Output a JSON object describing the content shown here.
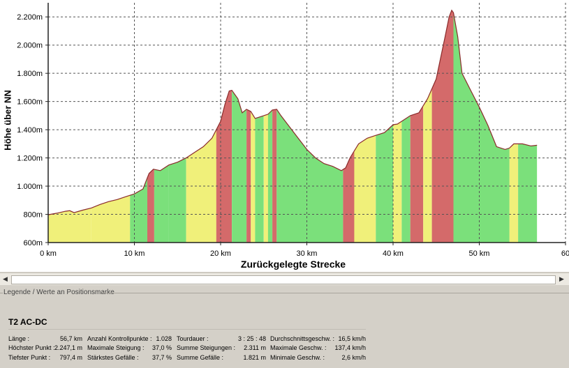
{
  "chart_data": {
    "type": "area",
    "xlabel": "Zurückgelegte Strecke",
    "ylabel": "Höhe über NN",
    "xlim": [
      0,
      60
    ],
    "ylim": [
      600,
      2300
    ],
    "x_ticks": [
      0,
      10,
      20,
      30,
      40,
      50,
      60
    ],
    "x_tick_labels": [
      "0 km",
      "10 km",
      "20 km",
      "30 km",
      "40 km",
      "50 km",
      "60"
    ],
    "y_ticks": [
      600,
      800,
      1000,
      1200,
      1400,
      1600,
      1800,
      2000,
      2200
    ],
    "y_tick_labels": [
      "600m",
      "800m",
      "1.000m",
      "1.200m",
      "1.400m",
      "1.600m",
      "1.800m",
      "2.000m",
      "2.200m"
    ],
    "grid": true,
    "gradient_colors": {
      "flat": "#7be07b",
      "moderate": "#f0f07a",
      "steep": "#d46a6a"
    },
    "profile": {
      "x": [
        0,
        1,
        2,
        2.5,
        3,
        4,
        5,
        6,
        7,
        8,
        9,
        10,
        11,
        11.7,
        12.2,
        13,
        14,
        15,
        16,
        17,
        18,
        19,
        20,
        20.5,
        21,
        21.3,
        22,
        22.5,
        23,
        23.5,
        24,
        25,
        25.5,
        26,
        26.5,
        27,
        28,
        29,
        30,
        31,
        32,
        33,
        34,
        34.5,
        35,
        36,
        37,
        38,
        39,
        40,
        40.5,
        41,
        42,
        43,
        44,
        45,
        46,
        46.5,
        46.8,
        47,
        47.5,
        48,
        49,
        50,
        51,
        52,
        53,
        53.5,
        54,
        55,
        56,
        56.7
      ],
      "y": [
        797,
        808,
        822,
        826,
        812,
        830,
        845,
        870,
        890,
        905,
        925,
        945,
        980,
        1090,
        1120,
        1110,
        1150,
        1170,
        1200,
        1240,
        1280,
        1340,
        1460,
        1580,
        1675,
        1680,
        1620,
        1520,
        1545,
        1530,
        1480,
        1500,
        1510,
        1540,
        1545,
        1500,
        1420,
        1340,
        1260,
        1200,
        1160,
        1140,
        1110,
        1130,
        1200,
        1300,
        1340,
        1360,
        1380,
        1435,
        1440,
        1460,
        1500,
        1520,
        1620,
        1760,
        2050,
        2200,
        2247,
        2230,
        2060,
        1800,
        1680,
        1560,
        1430,
        1280,
        1260,
        1270,
        1300,
        1300,
        1285,
        1290
      ]
    },
    "gradient_segments": [
      {
        "from": 0,
        "to": 5,
        "class": "moderate"
      },
      {
        "from": 5,
        "to": 9.5,
        "class": "moderate"
      },
      {
        "from": 9.5,
        "to": 11.5,
        "class": "flat"
      },
      {
        "from": 11.5,
        "to": 12.3,
        "class": "steep"
      },
      {
        "from": 12.3,
        "to": 14,
        "class": "flat"
      },
      {
        "from": 14,
        "to": 16,
        "class": "flat"
      },
      {
        "from": 16,
        "to": 18.5,
        "class": "moderate"
      },
      {
        "from": 18.5,
        "to": 19.5,
        "class": "moderate"
      },
      {
        "from": 19.5,
        "to": 21.3,
        "class": "steep"
      },
      {
        "from": 21.3,
        "to": 23,
        "class": "flat"
      },
      {
        "from": 23,
        "to": 23.5,
        "class": "steep"
      },
      {
        "from": 23.5,
        "to": 24,
        "class": "moderate"
      },
      {
        "from": 24,
        "to": 25,
        "class": "flat"
      },
      {
        "from": 25,
        "to": 25.5,
        "class": "moderate"
      },
      {
        "from": 25.5,
        "to": 26,
        "class": "flat"
      },
      {
        "from": 26,
        "to": 26.5,
        "class": "steep"
      },
      {
        "from": 26.5,
        "to": 34.2,
        "class": "flat"
      },
      {
        "from": 34.2,
        "to": 35.5,
        "class": "steep"
      },
      {
        "from": 35.5,
        "to": 38,
        "class": "moderate"
      },
      {
        "from": 38,
        "to": 40,
        "class": "flat"
      },
      {
        "from": 40,
        "to": 41,
        "class": "moderate"
      },
      {
        "from": 41,
        "to": 42,
        "class": "flat"
      },
      {
        "from": 42,
        "to": 43.5,
        "class": "steep"
      },
      {
        "from": 43.5,
        "to": 44.5,
        "class": "moderate"
      },
      {
        "from": 44.5,
        "to": 47,
        "class": "steep"
      },
      {
        "from": 47,
        "to": 53.5,
        "class": "flat"
      },
      {
        "from": 53.5,
        "to": 54.5,
        "class": "moderate"
      },
      {
        "from": 54.5,
        "to": 56.7,
        "class": "flat"
      }
    ]
  },
  "legend": {
    "header": "Legende / Werte an Positionsmarke",
    "tour_name": "T2 AC-DC",
    "stats": [
      {
        "label": "Länge :",
        "value": "56,7 km"
      },
      {
        "label": "Höchster Punkt :",
        "value": "2.247,1 m"
      },
      {
        "label": "Tiefster Punkt :",
        "value": "797,4 m"
      },
      {
        "label": "Anzahl Kontrollpunkte :",
        "value": "1.028"
      },
      {
        "label": "Maximale Steigung :",
        "value": "37,0 %"
      },
      {
        "label": "Stärkstes Gefälle :",
        "value": "37,7 %"
      },
      {
        "label": "Tourdauer :",
        "value": "3 : 25 : 48"
      },
      {
        "label": "Summe Steigungen :",
        "value": "2.311 m"
      },
      {
        "label": "Summe Gefälle :",
        "value": "1.821 m"
      },
      {
        "label": "Durchschnittsgeschw. :",
        "value": "16,5 km/h"
      },
      {
        "label": "Maximale Geschw. :",
        "value": "137,4 km/h"
      },
      {
        "label": "Minimale Geschw. :",
        "value": "2,6 km/h"
      }
    ]
  },
  "scrollbar": {
    "left_icon": "arrow-left-icon",
    "right_icon": "arrow-right-icon"
  }
}
